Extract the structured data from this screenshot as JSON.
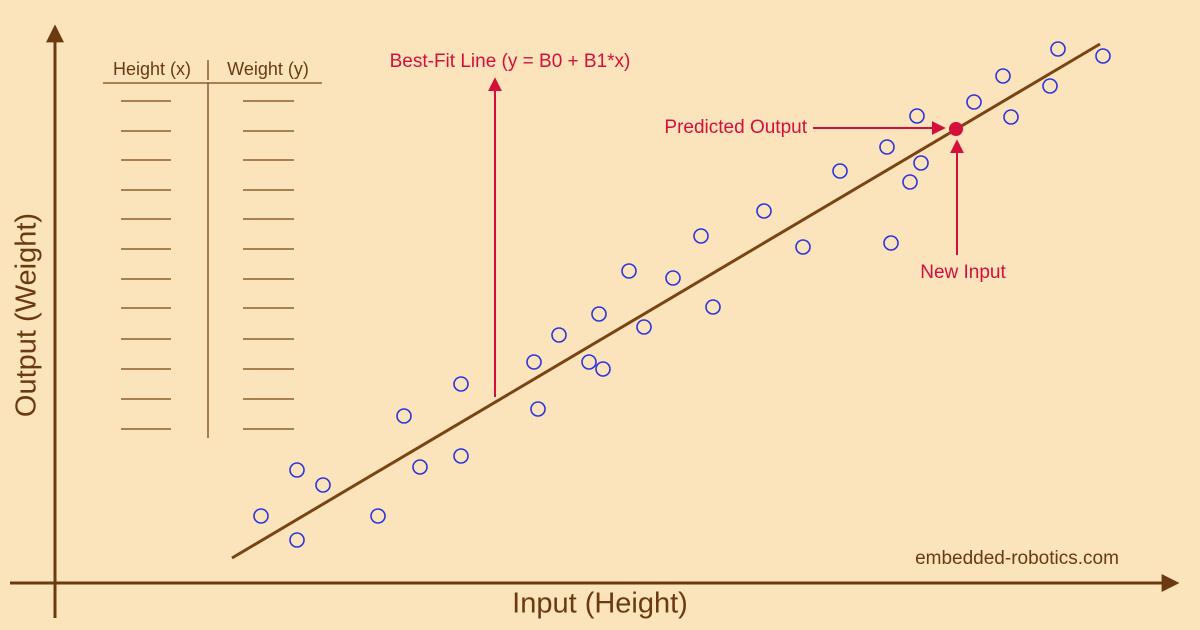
{
  "axes": {
    "x_label": "Input (Height)",
    "y_label": "Output (Weight)"
  },
  "table": {
    "headers": [
      "Height (x)",
      "Weight (y)"
    ]
  },
  "annotations": {
    "best_fit_line": "Best-Fit Line (y = B0 + B1*x)",
    "predicted_output": "Predicted Output",
    "new_input": "New Input"
  },
  "watermark": "embedded-robotics.com"
}
